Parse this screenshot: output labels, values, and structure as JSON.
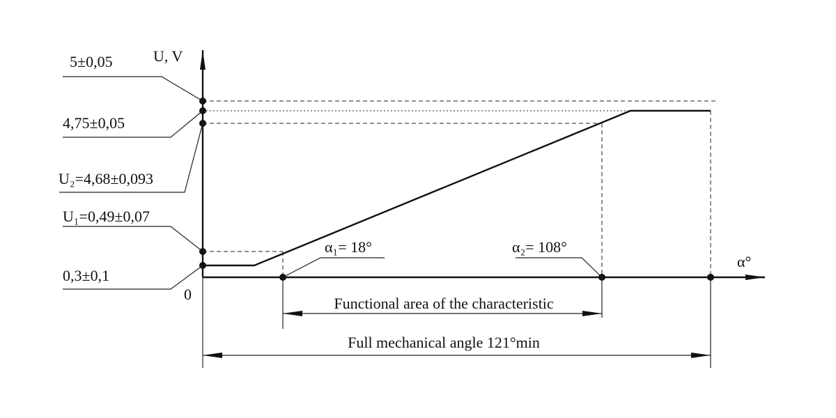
{
  "axes": {
    "y_label": "U, V",
    "x_label": "α°",
    "origin": "0"
  },
  "voltage_labels": [
    "5±0,05",
    "4,75±0,05",
    "U₂=4,68±0,093",
    "U₁=0,49±0,07",
    "0,3±0,1"
  ],
  "angle_labels": [
    "α₁= 18°",
    "α₂= 108°"
  ],
  "dimensions": {
    "functional": "Functional area of the characteristic",
    "full": "Full mechanical angle 121°min"
  }
}
